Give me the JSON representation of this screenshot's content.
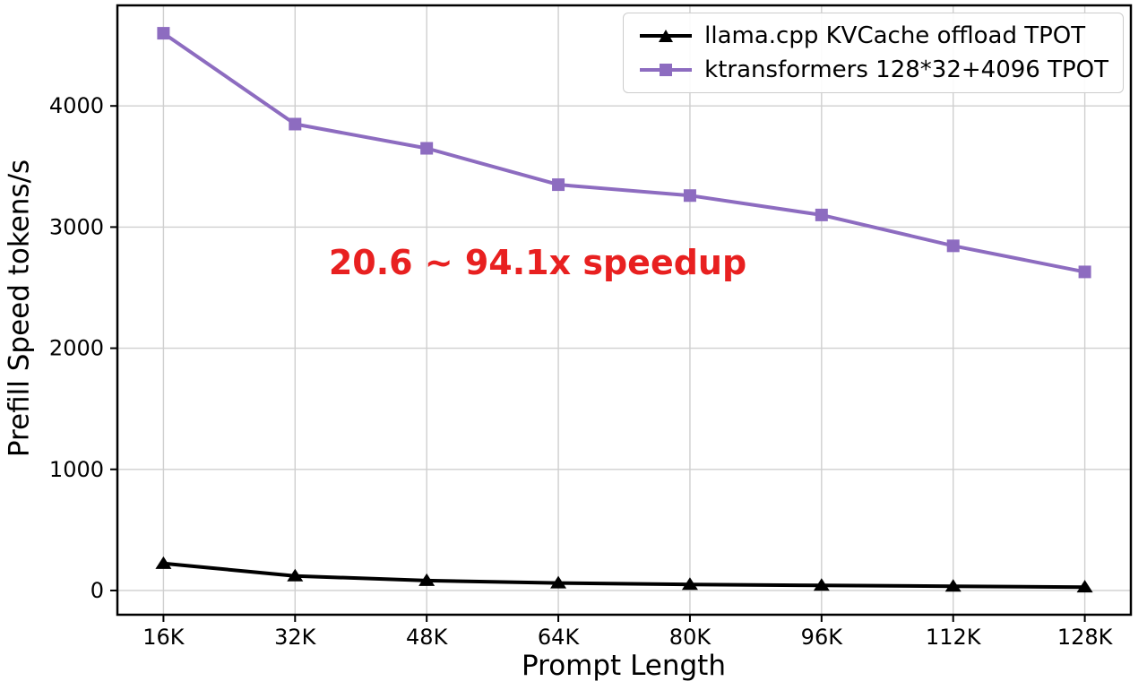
{
  "chart_data": {
    "type": "line",
    "title": "",
    "xlabel": "Prompt Length",
    "ylabel": "Prefill Speed tokens/s",
    "x": [
      16,
      32,
      48,
      64,
      80,
      96,
      112,
      128
    ],
    "x_tick_labels": [
      "16K",
      "32K",
      "48K",
      "64K",
      "80K",
      "96K",
      "112K",
      "128K"
    ],
    "y_ticks": [
      0,
      1000,
      2000,
      3000,
      4000
    ],
    "xlim": [
      10.4,
      133.6
    ],
    "ylim": [
      -200,
      4830
    ],
    "grid": true,
    "legend_position": "top-right",
    "series": [
      {
        "name": "llama.cpp KVCache offload TPOT",
        "color": "#000000",
        "marker": "triangle",
        "values": [
          223,
          120,
          82,
          62,
          50,
          42,
          35,
          28
        ]
      },
      {
        "name": "ktransformers 128*32+4096 TPOT",
        "color": "#8d6cc0",
        "marker": "square",
        "values": [
          4600,
          3850,
          3650,
          3350,
          3260,
          3100,
          2845,
          2630
        ]
      }
    ],
    "annotation": {
      "text": "20.6 ~ 94.1x speedup",
      "color": "#e82020"
    },
    "colors": {
      "grid": "#cfcfcf",
      "axis": "#000000",
      "background": "#ffffff"
    }
  }
}
